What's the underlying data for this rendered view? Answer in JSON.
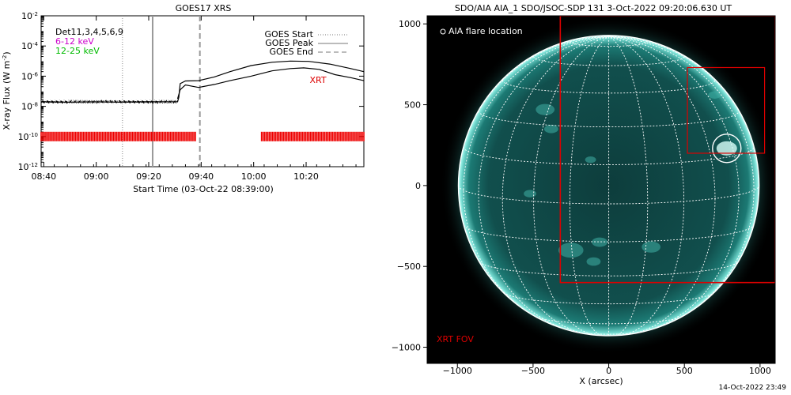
{
  "chart_data": [
    {
      "type": "line",
      "title": "GOES17 XRS",
      "xlabel": "Start Time (03-Oct-22 08:39:00)",
      "ylabel_main": "X-ray Flux (W m",
      "ylabel_sup": "-2",
      "ylabel_end": ")",
      "y_log_range": [
        -12,
        -2
      ],
      "y_ticks": [
        {
          "exp": -2,
          "base": "10",
          "sup": "-2"
        },
        {
          "exp": -4,
          "base": "10",
          "sup": "-4"
        },
        {
          "exp": -6,
          "base": "10",
          "sup": "-6"
        },
        {
          "exp": -8,
          "base": "10",
          "sup": "-8"
        },
        {
          "exp": -10,
          "base": "10",
          "sup": "-10"
        },
        {
          "exp": -12,
          "base": "10",
          "sup": "-12"
        }
      ],
      "x_range_minutes": [
        0,
        123
      ],
      "x_ticks": [
        {
          "t": 1,
          "label": "08:40"
        },
        {
          "t": 21,
          "label": "09:00"
        },
        {
          "t": 41,
          "label": "09:20"
        },
        {
          "t": 61,
          "label": "09:40"
        },
        {
          "t": 81,
          "label": "10:00"
        },
        {
          "t": 101,
          "label": "10:20"
        }
      ],
      "legend_left": [
        {
          "text": "Det11,3,4,5,6,9",
          "color": "#000000"
        },
        {
          "text": "6-12 keV",
          "color": "#cc00cc"
        },
        {
          "text": "12-25 keV",
          "color": "#00bb00"
        }
      ],
      "legend_right": [
        {
          "text": "GOES Start",
          "style": "dotted"
        },
        {
          "text": "GOES Peak",
          "style": "solid"
        },
        {
          "text": "GOES End",
          "style": "dashed"
        }
      ],
      "vlines": {
        "start": 31,
        "peak": 42.5,
        "end": 60.5
      },
      "xrt_label": "XRT",
      "xrt_bar_exp": -10,
      "xrt_intervals": [
        [
          0,
          59
        ],
        [
          84,
          123
        ]
      ],
      "series": [
        {
          "name": "",
          "color": "#000000",
          "points": [
            [
              0,
              -7.7
            ],
            [
              10,
              -7.72
            ],
            [
              20,
              -7.7
            ],
            [
              30,
              -7.72
            ],
            [
              40,
              -7.7
            ],
            [
              52,
              -7.7
            ],
            [
              52.5,
              -7.4
            ],
            [
              53,
              -6.5
            ],
            [
              55,
              -6.32
            ],
            [
              60,
              -6.3
            ],
            [
              66,
              -6.05
            ],
            [
              72,
              -5.7
            ],
            [
              80,
              -5.3
            ],
            [
              88,
              -5.08
            ],
            [
              95,
              -5.0
            ],
            [
              102,
              -5.02
            ],
            [
              110,
              -5.2
            ],
            [
              118,
              -5.5
            ],
            [
              123,
              -5.7
            ]
          ]
        },
        {
          "name": "",
          "color": "#000000",
          "points": [
            [
              52,
              -7.5
            ],
            [
              53,
              -6.9
            ],
            [
              55,
              -6.58
            ],
            [
              60,
              -6.75
            ],
            [
              66,
              -6.55
            ],
            [
              72,
              -6.3
            ],
            [
              80,
              -6.0
            ],
            [
              88,
              -5.65
            ],
            [
              95,
              -5.5
            ],
            [
              100,
              -5.45
            ],
            [
              106,
              -5.55
            ],
            [
              112,
              -5.9
            ],
            [
              118,
              -6.1
            ],
            [
              123,
              -6.3
            ]
          ]
        }
      ]
    },
    {
      "type": "scatter",
      "title": "SDO/AIA AIA_1 SDO/JSOC-SDP 131  3-Oct-2022 09:20:06.630 UT",
      "xlabel": "X (arcsec)",
      "ylabel": "",
      "xlim": [
        -1200,
        1100
      ],
      "ylim": [
        -1100,
        1050
      ],
      "x_ticks": [
        -1000,
        -500,
        0,
        500,
        1000
      ],
      "y_ticks": [
        -1000,
        -500,
        0,
        500,
        1000
      ],
      "solar_radius_arcsec": 960,
      "legend_text": "AIA flare location",
      "xrt_fov_label": "XRT FOV",
      "xrt_fov_box": [
        -320,
        -600,
        1100,
        1050
      ],
      "small_box": [
        520,
        200,
        1030,
        730
      ],
      "flare_location": {
        "x": 780,
        "y": 230
      },
      "colors": {
        "disk": "#0f4a48",
        "limb": "#9ef0e8",
        "grid": "#ffffff",
        "fov": "#dd0000"
      }
    }
  ],
  "footer": {
    "timestamp": "14-Oct-2022 23:49"
  }
}
